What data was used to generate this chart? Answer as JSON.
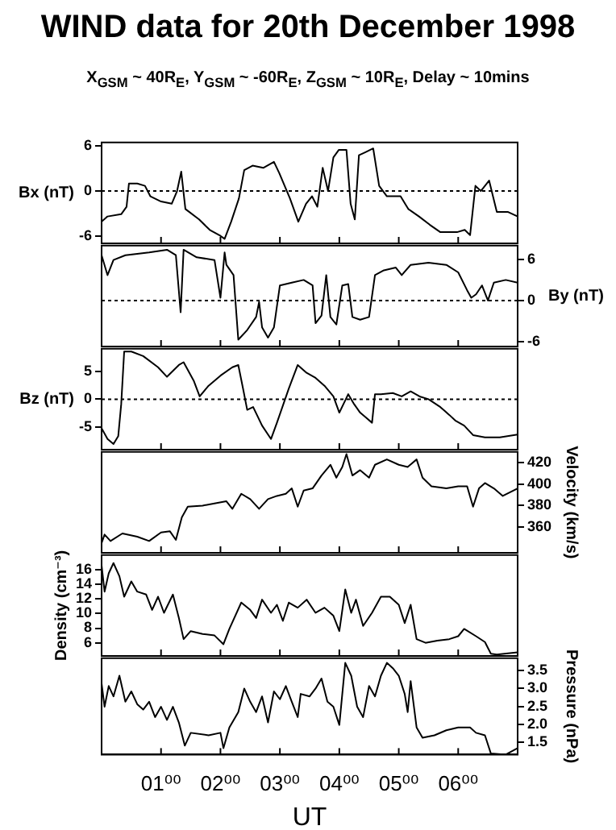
{
  "chart_data": [
    {
      "type": "line",
      "title": "WIND data for 20th December 1998",
      "subtitle": "X$_{GSM}$ ~ 40R$_{E}$, Y$_{GSM}$ ~ -60R$_{E}$, Z$_{GSM}$ ~ 10R$_{E}$, Delay ~ 10mins",
      "ylabel": "Bx (nT)",
      "xlim": [
        0,
        7
      ],
      "xticks": [
        {
          "value": 1,
          "label": null
        },
        {
          "value": 2,
          "label": null
        },
        {
          "value": 3,
          "label": null
        },
        {
          "value": 4,
          "label": null
        },
        {
          "value": 5,
          "label": null
        },
        {
          "value": 6,
          "label": null
        }
      ],
      "ylim": [
        -7,
        6.5
      ],
      "yticks": [
        -6,
        0,
        6
      ],
      "tick_labels": "y",
      "ref_lines": [
        {
          "axis": "y",
          "value": 0,
          "line_style": "dotted"
        }
      ],
      "x": [
        0,
        0.1,
        0.33,
        0.42,
        0.46,
        0.6,
        0.73,
        0.82,
        1.0,
        1.18,
        1.27,
        1.34,
        1.41,
        1.64,
        1.82,
        2.0,
        2.07,
        2.18,
        2.31,
        2.4,
        2.54,
        2.72,
        2.9,
        2.99,
        3.17,
        3.31,
        3.44,
        3.54,
        3.63,
        3.72,
        3.81,
        3.9,
        3.99,
        4.12,
        4.19,
        4.26,
        4.33,
        4.44,
        4.57,
        4.67,
        4.8,
        5.03,
        5.16,
        5.34,
        5.52,
        5.7,
        5.98,
        6.11,
        6.2,
        6.29,
        6.38,
        6.52,
        6.65,
        6.84,
        7.0
      ],
      "series": [
        {
          "color": "#000000",
          "values": [
            -4.1,
            -3.4,
            -3.1,
            -2.1,
            1.0,
            1.0,
            0.7,
            -0.7,
            -1.4,
            -1.7,
            0,
            2.6,
            -2.4,
            -3.8,
            -5.2,
            -6.0,
            -6.4,
            -4.1,
            -1.0,
            2.8,
            3.4,
            3.1,
            3.9,
            2.4,
            -1.0,
            -4.1,
            -1.7,
            -0.7,
            -2.1,
            3.1,
            0,
            4.5,
            5.5,
            5.5,
            -1.7,
            -3.8,
            4.8,
            5.2,
            5.7,
            0.7,
            -0.7,
            -0.7,
            -2.4,
            -3.4,
            -4.5,
            -5.5,
            -5.5,
            -5.2,
            -5.9,
            0.7,
            0,
            1.4,
            -2.8,
            -2.8,
            -3.4
          ]
        }
      ]
    },
    {
      "type": "line",
      "y2label": "By (nT)",
      "xlim": [
        0,
        7
      ],
      "xticks": [
        {
          "value": 1,
          "label": null
        },
        {
          "value": 2,
          "label": null
        },
        {
          "value": 3,
          "label": null
        },
        {
          "value": 4,
          "label": null
        },
        {
          "value": 5,
          "label": null
        },
        {
          "value": 6,
          "label": null
        }
      ],
      "y2lim": [
        -6.7,
        8
      ],
      "y2ticks": [
        -6,
        0,
        6
      ],
      "tick_labels": "y",
      "ref_lines": [
        {
          "axis": "y2",
          "value": 0,
          "line_style": "dotted"
        }
      ],
      "x": [
        0,
        0.1,
        0.2,
        0.4,
        0.8,
        1.1,
        1.25,
        1.33,
        1.38,
        1.6,
        1.9,
        2.0,
        2.07,
        2.1,
        2.22,
        2.3,
        2.45,
        2.6,
        2.65,
        2.7,
        2.8,
        2.9,
        3.0,
        3.2,
        3.4,
        3.55,
        3.6,
        3.7,
        3.78,
        3.85,
        3.95,
        4.05,
        4.15,
        4.22,
        4.35,
        4.5,
        4.6,
        4.75,
        4.95,
        5.05,
        5.2,
        5.5,
        5.8,
        6.0,
        6.15,
        6.22,
        6.3,
        6.4,
        6.5,
        6.6,
        6.8,
        7.0
      ],
      "series": [
        {
          "axis": "y2",
          "color": "#000000",
          "values": [
            6.6,
            3.7,
            5.9,
            6.6,
            7.0,
            7.4,
            6.6,
            -1.7,
            7.4,
            6.3,
            5.9,
            0.4,
            7.0,
            5.2,
            3.7,
            -5.7,
            -4.3,
            -2.4,
            -0.2,
            -3.9,
            -5.4,
            -3.9,
            2.2,
            2.6,
            3.0,
            2.2,
            -3.3,
            -2.2,
            3.7,
            -2.4,
            -3.5,
            2.2,
            2.4,
            -2.4,
            -2.8,
            -2.4,
            3.7,
            4.4,
            4.8,
            3.7,
            5.2,
            5.5,
            5.2,
            4.1,
            1.5,
            0.4,
            0.9,
            2.2,
            0,
            2.6,
            3.0,
            2.6
          ]
        }
      ]
    },
    {
      "type": "line",
      "ylabel": "Bz (nT)",
      "xlim": [
        0,
        7
      ],
      "xticks": [
        {
          "value": 1,
          "label": null
        },
        {
          "value": 2,
          "label": null
        },
        {
          "value": 3,
          "label": null
        },
        {
          "value": 4,
          "label": null
        },
        {
          "value": 5,
          "label": null
        },
        {
          "value": 6,
          "label": null
        }
      ],
      "ylim": [
        -9,
        9
      ],
      "yticks": [
        -5,
        0,
        5
      ],
      "tick_labels": "y",
      "ref_lines": [
        {
          "axis": "y",
          "value": 0,
          "line_style": "dotted"
        }
      ],
      "x": [
        0,
        0.1,
        0.2,
        0.28,
        0.33,
        0.38,
        0.5,
        0.7,
        0.95,
        1.1,
        1.3,
        1.38,
        1.55,
        1.65,
        1.8,
        2.0,
        2.2,
        2.3,
        2.38,
        2.45,
        2.55,
        2.7,
        2.85,
        2.95,
        3.15,
        3.3,
        3.45,
        3.6,
        3.75,
        3.9,
        4.0,
        4.15,
        4.25,
        4.35,
        4.45,
        4.55,
        4.6,
        4.7,
        4.9,
        5.05,
        5.2,
        5.35,
        5.5,
        5.7,
        5.85,
        5.95,
        6.1,
        6.25,
        6.45,
        6.7,
        7.0
      ],
      "series": [
        {
          "color": "#000000",
          "values": [
            -5.2,
            -7.1,
            -8.0,
            -6.6,
            -0.9,
            8.5,
            8.5,
            7.7,
            5.7,
            4.0,
            6.1,
            6.6,
            3.3,
            0.5,
            2.4,
            4.2,
            5.7,
            6.1,
            1.9,
            -1.9,
            -1.4,
            -4.7,
            -7.1,
            -4.2,
            1.9,
            6.1,
            4.7,
            3.8,
            2.4,
            0.5,
            -2.4,
            0.9,
            -0.9,
            -2.4,
            -3.3,
            -4.2,
            0.9,
            0.9,
            1.1,
            0.5,
            1.4,
            0.5,
            0,
            -1.4,
            -2.8,
            -3.8,
            -4.7,
            -6.4,
            -6.8,
            -6.8,
            -6.3
          ]
        }
      ]
    },
    {
      "type": "line",
      "y2label": "Velocity (km/s)",
      "xlim": [
        0,
        7
      ],
      "xticks": [
        {
          "value": 1,
          "label": null
        },
        {
          "value": 2,
          "label": null
        },
        {
          "value": 3,
          "label": null
        },
        {
          "value": 4,
          "label": null
        },
        {
          "value": 5,
          "label": null
        },
        {
          "value": 6,
          "label": null
        }
      ],
      "y2lim": [
        336,
        430
      ],
      "y2ticks": [
        360,
        380,
        400,
        420
      ],
      "tick_labels": "y",
      "x": [
        0,
        0.05,
        0.15,
        0.35,
        0.6,
        0.8,
        1.0,
        1.15,
        1.25,
        1.35,
        1.45,
        1.7,
        1.9,
        2.1,
        2.2,
        2.35,
        2.5,
        2.65,
        2.8,
        2.95,
        3.1,
        3.2,
        3.3,
        3.4,
        3.55,
        3.7,
        3.85,
        3.95,
        4.05,
        4.12,
        4.22,
        4.35,
        4.5,
        4.6,
        4.8,
        5.0,
        5.15,
        5.3,
        5.4,
        5.55,
        5.8,
        6.0,
        6.15,
        6.25,
        6.35,
        6.45,
        6.6,
        6.75,
        7.0
      ],
      "series": [
        {
          "axis": "y2",
          "color": "#000000",
          "values": [
            345,
            353,
            347,
            354,
            351,
            347,
            355,
            356,
            348,
            369,
            379,
            380,
            382,
            384,
            377,
            391,
            386,
            377,
            386,
            389,
            391,
            396,
            379,
            394,
            396,
            408,
            418,
            406,
            416,
            428,
            408,
            413,
            406,
            418,
            423,
            418,
            416,
            423,
            406,
            398,
            396,
            398,
            398,
            379,
            396,
            401,
            396,
            389,
            396
          ]
        }
      ]
    },
    {
      "type": "line",
      "ylabel": "Density (cm⁻³)",
      "xlim": [
        0,
        7
      ],
      "xticks": [
        {
          "value": 1,
          "label": null
        },
        {
          "value": 2,
          "label": null
        },
        {
          "value": 3,
          "label": null
        },
        {
          "value": 4,
          "label": null
        },
        {
          "value": 5,
          "label": null
        },
        {
          "value": 6,
          "label": null
        }
      ],
      "ylim": [
        4.2,
        18
      ],
      "yticks": [
        6,
        8,
        10,
        12,
        14,
        16
      ],
      "tick_labels": "y",
      "x": [
        0,
        0.05,
        0.12,
        0.2,
        0.3,
        0.38,
        0.5,
        0.6,
        0.75,
        0.85,
        0.95,
        1.05,
        1.2,
        1.3,
        1.38,
        1.5,
        1.7,
        1.9,
        2.05,
        2.15,
        2.35,
        2.5,
        2.6,
        2.7,
        2.85,
        2.95,
        3.05,
        3.15,
        3.3,
        3.45,
        3.6,
        3.75,
        3.9,
        4.0,
        4.1,
        4.2,
        4.28,
        4.4,
        4.55,
        4.7,
        4.85,
        5.0,
        5.1,
        5.2,
        5.3,
        5.45,
        5.65,
        5.85,
        6.0,
        6.1,
        6.3,
        6.45,
        6.55,
        6.65,
        7.0
      ],
      "series": [
        {
          "color": "#000000",
          "values": [
            16.6,
            13.0,
            15.5,
            16.9,
            15.1,
            12.3,
            14.4,
            13.0,
            12.6,
            10.5,
            12.3,
            10.1,
            12.6,
            9.4,
            6.5,
            7.6,
            7.2,
            7.0,
            5.8,
            7.9,
            11.5,
            10.5,
            9.4,
            11.9,
            10.1,
            11.2,
            9.0,
            11.5,
            10.8,
            11.9,
            10.1,
            10.8,
            9.7,
            7.6,
            13.3,
            10.1,
            11.9,
            8.3,
            10.1,
            12.3,
            12.3,
            11.2,
            8.7,
            11.2,
            6.5,
            6.0,
            6.3,
            6.5,
            6.9,
            7.9,
            6.9,
            6.1,
            4.5,
            4.4,
            4.7
          ]
        }
      ]
    },
    {
      "type": "line",
      "y2label": "Pressure (nPa)",
      "xlabel": "UT",
      "xlim": [
        0,
        7
      ],
      "xticks": [
        {
          "value": 1,
          "label": "01⁰⁰"
        },
        {
          "value": 2,
          "label": "02⁰⁰"
        },
        {
          "value": 3,
          "label": "03⁰⁰"
        },
        {
          "value": 4,
          "label": "04⁰⁰"
        },
        {
          "value": 5,
          "label": "05⁰⁰"
        },
        {
          "value": 6,
          "label": "06⁰⁰"
        }
      ],
      "y2lim": [
        1.15,
        3.85
      ],
      "y2ticks": [
        1.5,
        {
          "value": 2,
          "label": "2.0"
        },
        2.5,
        {
          "value": 3,
          "label": "3.0"
        },
        3.5
      ],
      "x": [
        0,
        0.05,
        0.12,
        0.2,
        0.3,
        0.4,
        0.5,
        0.6,
        0.7,
        0.8,
        0.9,
        1.0,
        1.1,
        1.2,
        1.3,
        1.4,
        1.5,
        1.8,
        2.0,
        2.05,
        2.15,
        2.3,
        2.4,
        2.5,
        2.6,
        2.7,
        2.8,
        2.9,
        3.0,
        3.1,
        3.2,
        3.3,
        3.35,
        3.5,
        3.6,
        3.7,
        3.8,
        3.9,
        4.0,
        4.1,
        4.2,
        4.3,
        4.4,
        4.5,
        4.6,
        4.7,
        4.8,
        4.9,
        5.0,
        5.1,
        5.15,
        5.2,
        5.3,
        5.4,
        5.6,
        5.8,
        6.0,
        6.2,
        6.3,
        6.45,
        6.55,
        6.8,
        7.0
      ],
      "series": [
        {
          "axis": "y2",
          "color": "#000000",
          "values": [
            3.14,
            2.49,
            3.07,
            2.78,
            3.36,
            2.63,
            2.92,
            2.56,
            2.41,
            2.63,
            2.2,
            2.49,
            2.12,
            2.49,
            2.05,
            1.4,
            1.76,
            1.69,
            1.76,
            1.33,
            1.91,
            2.34,
            3.0,
            2.63,
            2.34,
            2.78,
            2.05,
            2.92,
            2.7,
            3.07,
            2.63,
            2.2,
            2.85,
            2.78,
            3.0,
            3.28,
            2.63,
            2.49,
            1.98,
            3.72,
            3.36,
            2.49,
            2.2,
            3.07,
            2.78,
            3.36,
            3.72,
            3.57,
            3.36,
            2.85,
            2.34,
            3.21,
            1.91,
            1.62,
            1.69,
            1.83,
            1.91,
            1.91,
            1.76,
            1.69,
            1.18,
            1.15,
            1.33
          ]
        }
      ]
    }
  ]
}
